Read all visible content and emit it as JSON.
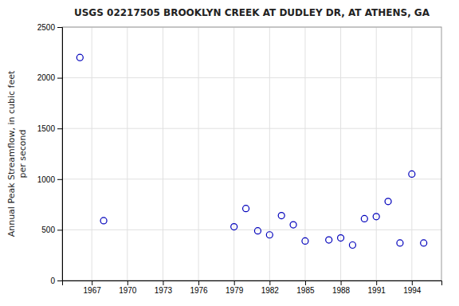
{
  "chart_data": {
    "type": "scatter",
    "title": "USGS 02217505 BROOKLYN CREEK AT DUDLEY DR, AT ATHENS, GA",
    "y_label": "Annual Peak Streamflow, in cubic feet\nper second",
    "x": [
      1966,
      1968,
      1979,
      1980,
      1981,
      1982,
      1983,
      1984,
      1985,
      1987,
      1988,
      1989,
      1990,
      1991,
      1992,
      1993,
      1994,
      1995
    ],
    "values": [
      2200,
      590,
      530,
      710,
      490,
      450,
      640,
      550,
      390,
      400,
      420,
      350,
      610,
      630,
      780,
      370,
      1050,
      370
    ],
    "color": "#0000bb",
    "marker": "circle",
    "xlim": [
      1964.5,
      1996.5
    ],
    "ylim": [
      0,
      2500
    ],
    "xticks": [
      1967,
      1970,
      1973,
      1976,
      1979,
      1982,
      1985,
      1988,
      1991,
      1994
    ],
    "yticks": [
      0,
      500,
      1000,
      1500,
      2000,
      2500
    ],
    "grid": true
  }
}
